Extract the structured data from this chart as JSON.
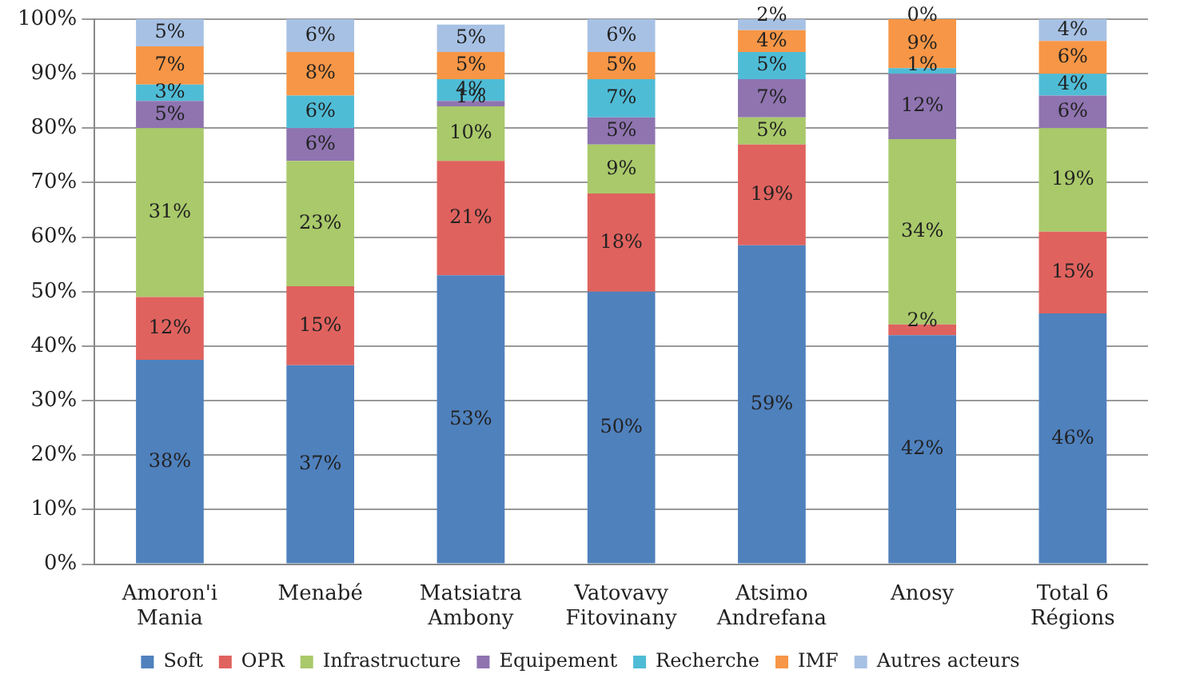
{
  "chart_data": {
    "type": "bar",
    "stacked": true,
    "categories": [
      "Amoron'i Mania",
      "Menabé",
      "Matsiatra Ambony",
      "Vatovavy Fitovinany",
      "Atsimo Andrefana",
      "Anosy",
      "Total 6 Régions"
    ],
    "series": [
      {
        "name": "Soft",
        "color": "#4f81bd",
        "values": [
          37.5,
          36.5,
          53,
          50,
          58.5,
          42,
          46
        ],
        "value_labels": [
          "38%",
          "37%",
          "53%",
          "50%",
          "59%",
          "42%",
          "46%"
        ]
      },
      {
        "name": "OPR",
        "color": "#e0625e",
        "values": [
          11.5,
          14.5,
          21,
          18,
          18.5,
          2,
          15
        ],
        "value_labels": [
          "12%",
          "15%",
          "21%",
          "18%",
          "19%",
          "2%",
          "15%"
        ]
      },
      {
        "name": "Infrastructure",
        "color": "#a9c96a",
        "values": [
          31,
          23,
          10,
          9,
          5,
          34,
          19
        ],
        "value_labels": [
          "31%",
          "23%",
          "10%",
          "9%",
          "5%",
          "34%",
          "19%"
        ]
      },
      {
        "name": "Equipement",
        "color": "#8f74b0",
        "values": [
          5,
          6,
          1,
          5,
          7,
          12,
          6
        ],
        "value_labels": [
          "5%",
          "6%",
          "1%",
          "5%",
          "7%",
          "12%",
          "6%"
        ]
      },
      {
        "name": "Recherche",
        "color": "#4fbcd6",
        "values": [
          3,
          6,
          4,
          7,
          5,
          1,
          4
        ],
        "value_labels": [
          "3%",
          "6%",
          "4%",
          "7%",
          "5%",
          "1%",
          "4%"
        ]
      },
      {
        "name": "IMF",
        "color": "#f79646",
        "values": [
          7,
          8,
          5,
          5,
          4,
          9,
          6
        ],
        "value_labels": [
          "7%",
          "8%",
          "5%",
          "5%",
          "4%",
          "9%",
          "6%"
        ]
      },
      {
        "name": "Autres acteurs",
        "color": "#a7c1e4",
        "values": [
          5,
          6,
          5,
          6,
          2,
          0,
          4
        ],
        "value_labels": [
          "5%",
          "6%",
          "5%",
          "6%",
          "2%",
          "0%",
          "4%"
        ]
      }
    ],
    "ylim": [
      0,
      100
    ],
    "yticks": [
      {
        "value": 0,
        "label": "0%"
      },
      {
        "value": 10,
        "label": "10%"
      },
      {
        "value": 20,
        "label": "20%"
      },
      {
        "value": 30,
        "label": "30%"
      },
      {
        "value": 40,
        "label": "40%"
      },
      {
        "value": 50,
        "label": "50%"
      },
      {
        "value": 60,
        "label": "60%"
      },
      {
        "value": 70,
        "label": "70%"
      },
      {
        "value": 80,
        "label": "80%"
      },
      {
        "value": 90,
        "label": "90%"
      },
      {
        "value": 100,
        "label": "100%"
      }
    ],
    "grid": "y",
    "legend": "bottom"
  }
}
